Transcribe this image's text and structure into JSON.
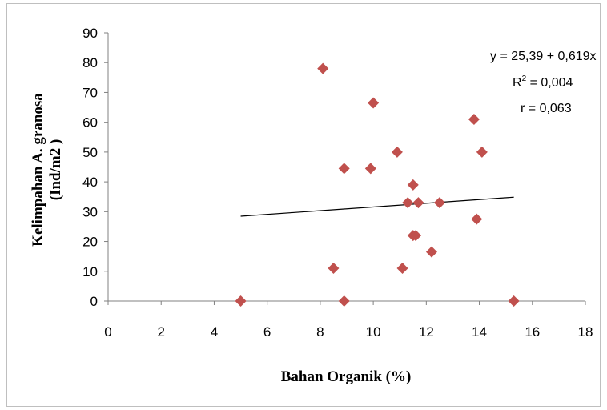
{
  "chart_data": {
    "type": "scatter",
    "xlabel": "Bahan Organik (%)",
    "ylabel_line1": "Kelimpahan A. granosa",
    "ylabel_line2": "(Ind/m2 )",
    "xlim": [
      0,
      18
    ],
    "ylim": [
      0,
      90
    ],
    "x_ticks": [
      "0",
      "2",
      "4",
      "6",
      "8",
      "10",
      "12",
      "14",
      "16",
      "18"
    ],
    "y_ticks": [
      "0",
      "10",
      "20",
      "30",
      "40",
      "50",
      "60",
      "70",
      "80",
      "90"
    ],
    "grid": false,
    "marker_color": "#c0504d",
    "points": [
      {
        "x": 5.0,
        "y": 0
      },
      {
        "x": 8.1,
        "y": 78
      },
      {
        "x": 8.5,
        "y": 11
      },
      {
        "x": 8.9,
        "y": 44.5
      },
      {
        "x": 8.9,
        "y": 0
      },
      {
        "x": 9.9,
        "y": 44.5
      },
      {
        "x": 10.0,
        "y": 66.5
      },
      {
        "x": 10.9,
        "y": 50
      },
      {
        "x": 11.1,
        "y": 11
      },
      {
        "x": 11.3,
        "y": 33
      },
      {
        "x": 11.5,
        "y": 39
      },
      {
        "x": 11.5,
        "y": 22
      },
      {
        "x": 11.6,
        "y": 22
      },
      {
        "x": 11.7,
        "y": 33
      },
      {
        "x": 12.2,
        "y": 16.5
      },
      {
        "x": 12.5,
        "y": 33
      },
      {
        "x": 13.8,
        "y": 61
      },
      {
        "x": 13.9,
        "y": 27.5
      },
      {
        "x": 14.1,
        "y": 50
      },
      {
        "x": 15.3,
        "y": 0
      }
    ],
    "trendline": {
      "intercept": 25.39,
      "slope": 0.619,
      "x_range": [
        5.0,
        15.3
      ],
      "equation": "y = 25,39 + 0,619x",
      "r_squared_prefix": "R",
      "r_squared_sup": "2",
      "r_squared_value": " = 0,004",
      "r": "r = 0,063"
    }
  }
}
